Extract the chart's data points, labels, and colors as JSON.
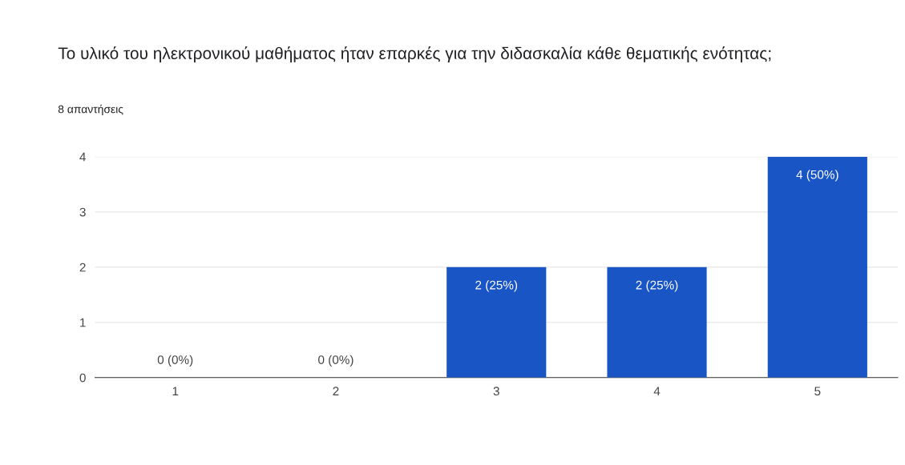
{
  "chart_data": {
    "type": "bar",
    "title": "Το υλικό του ηλεκτρονικού μαθήματος ήταν επαρκές για την διδασκαλία κάθε θεματικής ενότητας;",
    "subtitle": "8 απαντήσεις",
    "categories": [
      "1",
      "2",
      "3",
      "4",
      "5"
    ],
    "values": [
      0,
      0,
      2,
      2,
      4
    ],
    "value_labels": [
      "0 (0%)",
      "0 (0%)",
      "2 (25%)",
      "2 (25%)",
      "4 (50%)"
    ],
    "color": "#1a55c6",
    "ylim": [
      0,
      4
    ],
    "yticks": [
      0,
      1,
      2,
      3,
      4
    ],
    "grid": "y",
    "legend": false
  }
}
